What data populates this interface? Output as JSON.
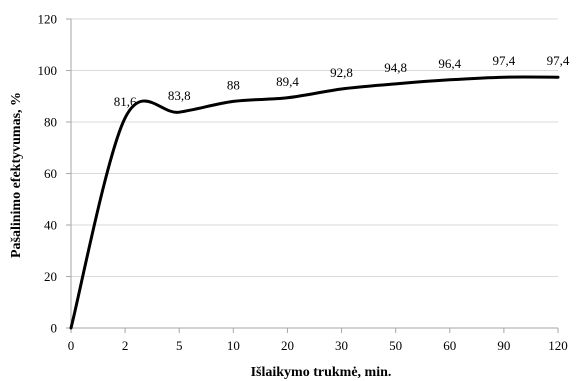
{
  "chart_data": {
    "type": "line",
    "x": [
      "0",
      "2",
      "5",
      "10",
      "20",
      "30",
      "50",
      "60",
      "90",
      "120"
    ],
    "values": [
      0,
      81.6,
      83.8,
      88,
      89.4,
      92.8,
      94.8,
      96.4,
      97.4,
      97.4
    ],
    "data_labels": [
      "",
      "81,6",
      "83,8",
      "88",
      "89,4",
      "92,8",
      "94,8",
      "96,4",
      "97,4",
      "97,4"
    ],
    "xlabel": "Išlaikymo trukmė, min.",
    "ylabel": "Pašalinimo efektyvumas, %",
    "ylim": [
      0,
      120
    ],
    "yticks": [
      "0",
      "20",
      "40",
      "60",
      "80",
      "100",
      "120"
    ],
    "grid": "horizontal",
    "legend": "none",
    "line_color": "#000000",
    "grid_color": "#d9d9d9"
  }
}
